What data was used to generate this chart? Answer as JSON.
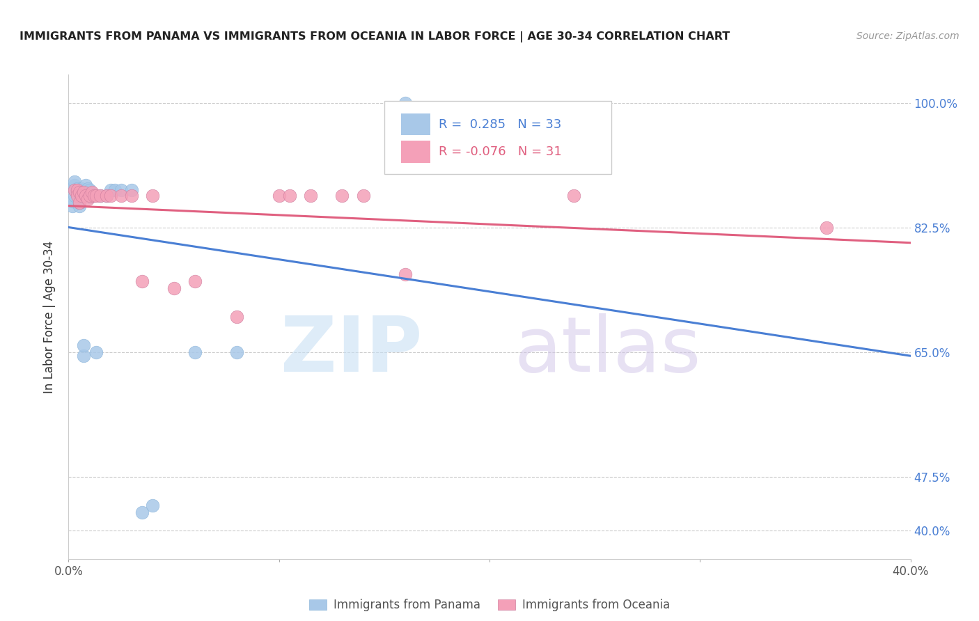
{
  "title": "IMMIGRANTS FROM PANAMA VS IMMIGRANTS FROM OCEANIA IN LABOR FORCE | AGE 30-34 CORRELATION CHART",
  "source": "Source: ZipAtlas.com",
  "ylabel": "In Labor Force | Age 30-34",
  "y_ticks": [
    0.4,
    0.475,
    0.65,
    0.825,
    1.0
  ],
  "y_tick_labels": [
    "40.0%",
    "47.5%",
    "65.0%",
    "82.5%",
    "100.0%"
  ],
  "xlim": [
    0.0,
    0.4
  ],
  "ylim": [
    0.36,
    1.04
  ],
  "panama_R": 0.285,
  "panama_N": 33,
  "oceania_R": -0.076,
  "oceania_N": 31,
  "panama_color": "#a8c8e8",
  "oceania_color": "#f4a0b8",
  "panama_line_color": "#4a7fd4",
  "oceania_line_color": "#e06080",
  "panama_x": [
    0.002,
    0.002,
    0.003,
    0.003,
    0.003,
    0.003,
    0.004,
    0.004,
    0.005,
    0.005,
    0.006,
    0.006,
    0.007,
    0.007,
    0.008,
    0.008,
    0.009,
    0.009,
    0.01,
    0.01,
    0.01,
    0.013,
    0.015,
    0.018,
    0.02,
    0.022,
    0.025,
    0.03,
    0.035,
    0.04,
    0.06,
    0.08,
    0.16
  ],
  "panama_y": [
    0.855,
    0.862,
    0.87,
    0.878,
    0.885,
    0.89,
    0.872,
    0.88,
    0.855,
    0.86,
    0.87,
    0.88,
    0.645,
    0.66,
    0.875,
    0.885,
    0.87,
    0.88,
    0.868,
    0.873,
    0.878,
    0.65,
    0.87,
    0.87,
    0.878,
    0.878,
    0.878,
    0.878,
    0.425,
    0.435,
    0.65,
    0.65,
    1.0
  ],
  "oceania_x": [
    0.003,
    0.004,
    0.004,
    0.005,
    0.005,
    0.006,
    0.007,
    0.008,
    0.009,
    0.01,
    0.011,
    0.012,
    0.013,
    0.015,
    0.018,
    0.02,
    0.025,
    0.03,
    0.035,
    0.04,
    0.05,
    0.06,
    0.08,
    0.1,
    0.105,
    0.115,
    0.13,
    0.14,
    0.16,
    0.24,
    0.36
  ],
  "oceania_y": [
    0.878,
    0.878,
    0.87,
    0.875,
    0.86,
    0.87,
    0.875,
    0.87,
    0.865,
    0.87,
    0.875,
    0.87,
    0.87,
    0.87,
    0.87,
    0.87,
    0.87,
    0.87,
    0.75,
    0.87,
    0.74,
    0.75,
    0.7,
    0.87,
    0.87,
    0.87,
    0.87,
    0.87,
    0.76,
    0.87,
    0.825
  ]
}
